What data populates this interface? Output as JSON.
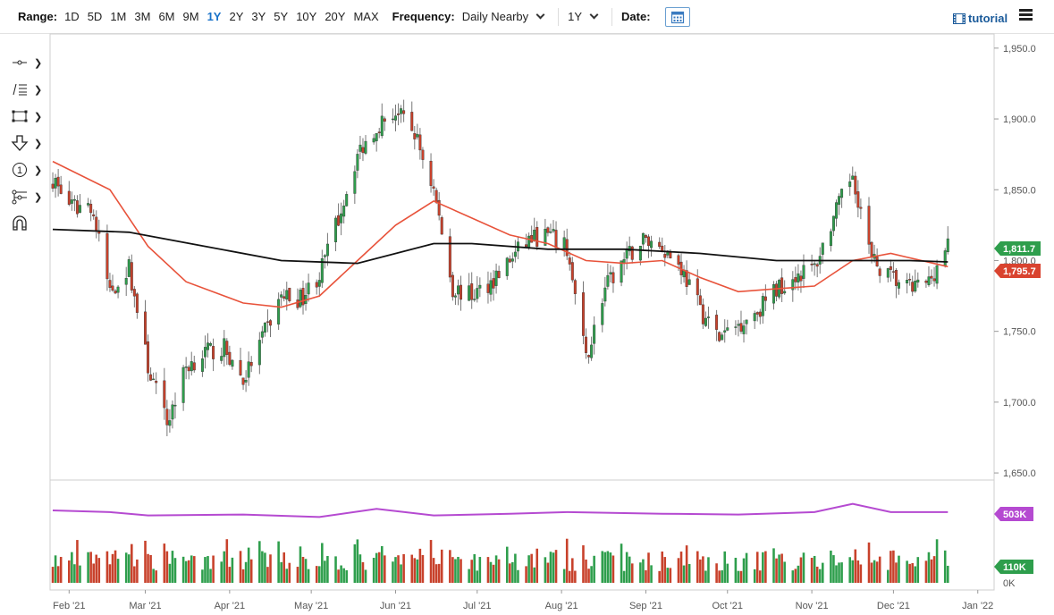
{
  "toolbar": {
    "range_label": "Range:",
    "ranges": [
      "1D",
      "5D",
      "1M",
      "3M",
      "6M",
      "9M",
      "1Y",
      "2Y",
      "3Y",
      "5Y",
      "10Y",
      "20Y",
      "MAX"
    ],
    "active_range": "1Y",
    "frequency_label": "Frequency:",
    "frequency_value": "Daily Nearby",
    "period_value": "1Y",
    "date_label": "Date:",
    "tutorial_label": "tutorial"
  },
  "colors": {
    "up": "#2e9e4c",
    "down": "#c8412b",
    "ma_short": "#e8533b",
    "ma_long": "#111111",
    "volume_ma": "#b54ad1"
  },
  "icons": [
    "crosshair-tool-icon",
    "fibonacci-tool-icon",
    "rectangle-tool-icon",
    "arrow-tool-icon",
    "annotation-tool-icon",
    "measure-tool-icon",
    "magnet-icon"
  ],
  "chart_data": {
    "type": "candlestick",
    "x_labels": [
      "Feb '21",
      "Mar '21",
      "Apr '21",
      "May '21",
      "Jun '21",
      "Jul '21",
      "Aug '21",
      "Sep '21",
      "Oct '21",
      "Nov '21",
      "Dec '21",
      "Jan '22"
    ],
    "price_ticks": [
      "1,950.0",
      "1,900.0",
      "1,850.0",
      "1,800.0",
      "1,750.0",
      "1,700.0",
      "1,650.0"
    ],
    "price_ylim": [
      1645,
      1960
    ],
    "volume_ticks": [
      "503K",
      "110K",
      "0K"
    ],
    "last_price": "1,811.7",
    "ma_value": "1,795.7",
    "volume_ma_badge": "503K",
    "volume_badge": "110K",
    "close_path": [
      [
        "2021-01-26",
        1858
      ],
      [
        "2021-02-02",
        1837
      ],
      [
        "2021-02-09",
        1840
      ],
      [
        "2021-02-16",
        1778
      ],
      [
        "2021-02-23",
        1795
      ],
      [
        "2021-03-02",
        1725
      ],
      [
        "2021-03-09",
        1685
      ],
      [
        "2021-03-16",
        1725
      ],
      [
        "2021-03-23",
        1735
      ],
      [
        "2021-03-30",
        1738
      ],
      [
        "2021-04-06",
        1715
      ],
      [
        "2021-04-13",
        1745
      ],
      [
        "2021-04-20",
        1775
      ],
      [
        "2021-04-27",
        1773
      ],
      [
        "2021-05-04",
        1790
      ],
      [
        "2021-05-11",
        1830
      ],
      [
        "2021-05-18",
        1875
      ],
      [
        "2021-05-25",
        1895
      ],
      [
        "2021-06-01",
        1905
      ],
      [
        "2021-06-08",
        1890
      ],
      [
        "2021-06-15",
        1850
      ],
      [
        "2021-06-22",
        1780
      ],
      [
        "2021-06-29",
        1775
      ],
      [
        "2021-07-06",
        1785
      ],
      [
        "2021-07-13",
        1800
      ],
      [
        "2021-07-20",
        1815
      ],
      [
        "2021-07-27",
        1818
      ],
      [
        "2021-08-03",
        1808
      ],
      [
        "2021-08-10",
        1730
      ],
      [
        "2021-08-17",
        1780
      ],
      [
        "2021-08-24",
        1800
      ],
      [
        "2021-08-31",
        1815
      ],
      [
        "2021-09-07",
        1810
      ],
      [
        "2021-09-14",
        1795
      ],
      [
        "2021-09-21",
        1765
      ],
      [
        "2021-09-28",
        1745
      ],
      [
        "2021-10-05",
        1755
      ],
      [
        "2021-10-12",
        1765
      ],
      [
        "2021-10-19",
        1780
      ],
      [
        "2021-10-26",
        1790
      ],
      [
        "2021-11-02",
        1795
      ],
      [
        "2021-11-09",
        1830
      ],
      [
        "2021-11-16",
        1862
      ],
      [
        "2021-11-23",
        1800
      ],
      [
        "2021-11-30",
        1788
      ],
      [
        "2021-12-07",
        1780
      ],
      [
        "2021-12-14",
        1785
      ],
      [
        "2021-12-21",
        1811.7
      ]
    ],
    "series": [
      {
        "name": "short moving average",
        "points": [
          [
            "2021-01-26",
            1870
          ],
          [
            "2021-02-16",
            1850
          ],
          [
            "2021-03-02",
            1810
          ],
          [
            "2021-03-16",
            1785
          ],
          [
            "2021-04-06",
            1770
          ],
          [
            "2021-04-20",
            1767
          ],
          [
            "2021-05-04",
            1775
          ],
          [
            "2021-05-18",
            1800
          ],
          [
            "2021-06-01",
            1825
          ],
          [
            "2021-06-15",
            1842
          ],
          [
            "2021-06-29",
            1830
          ],
          [
            "2021-07-13",
            1818
          ],
          [
            "2021-07-27",
            1812
          ],
          [
            "2021-08-10",
            1800
          ],
          [
            "2021-08-24",
            1798
          ],
          [
            "2021-09-07",
            1800
          ],
          [
            "2021-09-21",
            1788
          ],
          [
            "2021-10-05",
            1778
          ],
          [
            "2021-10-19",
            1780
          ],
          [
            "2021-11-02",
            1782
          ],
          [
            "2021-11-16",
            1800
          ],
          [
            "2021-11-30",
            1805
          ],
          [
            "2021-12-21",
            1795.7
          ]
        ]
      },
      {
        "name": "long moving average",
        "points": [
          [
            "2021-01-26",
            1822
          ],
          [
            "2021-02-23",
            1820
          ],
          [
            "2021-03-23",
            1810
          ],
          [
            "2021-04-20",
            1800
          ],
          [
            "2021-05-18",
            1798
          ],
          [
            "2021-06-15",
            1812
          ],
          [
            "2021-06-29",
            1812
          ],
          [
            "2021-07-27",
            1808
          ],
          [
            "2021-08-24",
            1808
          ],
          [
            "2021-09-21",
            1805
          ],
          [
            "2021-10-19",
            1800
          ],
          [
            "2021-11-16",
            1800
          ],
          [
            "2021-12-07",
            1800
          ],
          [
            "2021-12-21",
            1799
          ]
        ]
      }
    ],
    "volume_ma": [
      [
        "2021-01-26",
        0.88
      ],
      [
        "2021-02-16",
        0.86
      ],
      [
        "2021-03-02",
        0.82
      ],
      [
        "2021-04-06",
        0.83
      ],
      [
        "2021-05-04",
        0.8
      ],
      [
        "2021-05-25",
        0.9
      ],
      [
        "2021-06-15",
        0.82
      ],
      [
        "2021-07-13",
        0.84
      ],
      [
        "2021-08-03",
        0.86
      ],
      [
        "2021-09-07",
        0.84
      ],
      [
        "2021-10-05",
        0.83
      ],
      [
        "2021-11-02",
        0.86
      ],
      [
        "2021-11-16",
        0.96
      ],
      [
        "2021-11-30",
        0.86
      ],
      [
        "2021-12-21",
        0.86
      ]
    ]
  }
}
